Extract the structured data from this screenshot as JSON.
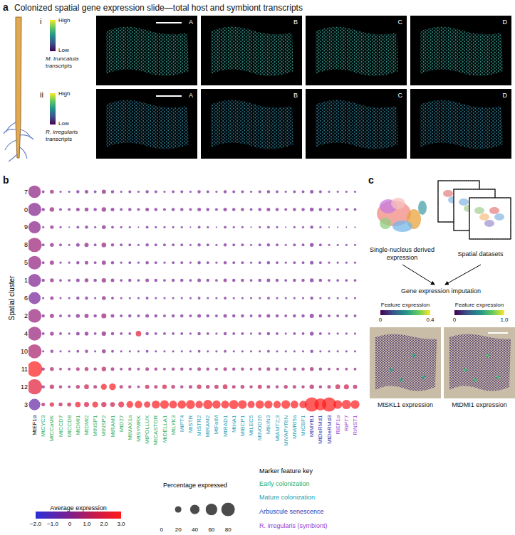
{
  "panel_a": {
    "label": "a",
    "title": "Colonized spatial gene expression slide—total host and symbiont transcripts",
    "rows": [
      {
        "label": "i",
        "high": "High",
        "low": "Low",
        "organism": "M. truncatula",
        "caption": "transcripts",
        "sections": [
          "A",
          "B",
          "C",
          "D"
        ]
      },
      {
        "label": "ii",
        "high": "High",
        "low": "Low",
        "organism": "R. irregularis",
        "caption": "transcripts",
        "sections": [
          "A",
          "B",
          "C",
          "D"
        ]
      }
    ]
  },
  "chart_data": {
    "type": "dot",
    "label": "b",
    "y_label": "Spatial cluster",
    "categories": [
      "MtEF1α",
      "MtCYC3",
      "MtCCaMK",
      "MtCCD7",
      "MtCCD8",
      "MtDMI1",
      "MtDMI2",
      "MtNSP1",
      "MtNSP2",
      "MtRAM1",
      "MtD27",
      "MtMAX1a",
      "MtSYMRK",
      "MtPOLLUX",
      "MtCASTOR",
      "MtDELLA1",
      "MtLYK3",
      "MtPT4",
      "MtSTR",
      "MtSTR2",
      "MtRAM2",
      "MtFatM",
      "MtRAD1",
      "MtHA1",
      "MtBCP1",
      "MtLEC5",
      "MtNOD26",
      "MtKIN3",
      "MtAMT2;3",
      "MtVAPYRIN",
      "MtWRI5a",
      "MtCBF1",
      "MtMYB1",
      "MtDeRMd1",
      "MtDeRMd3",
      "RiEF1α",
      "RiPT7",
      "RiNST1"
    ],
    "category_groups": [
      null,
      0,
      0,
      0,
      0,
      0,
      0,
      0,
      0,
      0,
      0,
      0,
      0,
      0,
      0,
      0,
      0,
      1,
      1,
      1,
      1,
      1,
      1,
      1,
      1,
      1,
      1,
      1,
      1,
      1,
      1,
      1,
      2,
      2,
      2,
      3,
      3,
      3
    ],
    "groups": [
      {
        "name": "Early colonization",
        "color": "#2fae5e"
      },
      {
        "name": "Mature colonization",
        "color": "#1fa0b4"
      },
      {
        "name": "Arbuscule senescence",
        "color": "#2f35b0"
      },
      {
        "name": "R. irregularis (symbiont)",
        "color": "#9a3fd2"
      }
    ],
    "rows": [
      "7",
      "0",
      "9",
      "8",
      "5",
      "1",
      "6",
      "2",
      "4",
      "10",
      "11",
      "12",
      "3"
    ],
    "average_expression": [
      [
        0.3,
        -0.2,
        0.4,
        -0.3,
        -0.4,
        -0.2,
        0.1,
        -0.3,
        0.2,
        -0.1,
        -0.3,
        -0.2,
        -0.4,
        -0.1,
        -0.3,
        -0.2,
        -0.3,
        -0.3,
        -0.4,
        -0.2,
        -0.3,
        -0.4,
        -0.1,
        -0.3,
        -0.2,
        -0.4,
        -0.3,
        -0.2,
        -0.3,
        -0.4,
        -0.3,
        -0.2,
        -0.3,
        -0.4,
        -0.3,
        -0.4,
        -0.3,
        -0.4
      ],
      [
        0.1,
        -0.1,
        0.6,
        -0.2,
        -0.3,
        0.0,
        0.2,
        -0.2,
        0.3,
        0.0,
        -0.2,
        -0.1,
        -0.3,
        0.0,
        -0.2,
        -0.1,
        -0.2,
        -0.2,
        -0.3,
        -0.1,
        -0.2,
        -0.3,
        0.0,
        -0.2,
        -0.1,
        -0.3,
        -0.2,
        -0.1,
        -0.2,
        -0.3,
        -0.2,
        -0.1,
        -0.2,
        -0.3,
        -0.2,
        -0.3,
        -0.2,
        -0.3
      ],
      [
        0.2,
        -0.3,
        0.2,
        -0.4,
        -0.4,
        -0.3,
        0.0,
        -0.3,
        0.1,
        -0.2,
        -0.4,
        -0.3,
        -0.4,
        -0.2,
        -0.4,
        -0.3,
        -0.4,
        -0.4,
        -0.4,
        -0.3,
        -0.4,
        -0.4,
        -0.2,
        -0.4,
        -0.3,
        -0.4,
        -0.4,
        -0.3,
        -0.4,
        -0.4,
        -0.4,
        -0.3,
        -0.4,
        -0.4,
        -0.4,
        -0.4,
        -0.4,
        -0.4
      ],
      [
        0.6,
        -0.2,
        0.3,
        -0.3,
        -0.3,
        -0.1,
        0.3,
        -0.2,
        0.5,
        0.0,
        -0.3,
        -0.2,
        -0.3,
        -0.1,
        -0.2,
        -0.2,
        -0.3,
        -0.3,
        -0.3,
        -0.2,
        -0.3,
        -0.3,
        -0.1,
        -0.3,
        -0.2,
        -0.3,
        -0.3,
        -0.2,
        -0.3,
        -0.3,
        -0.3,
        -0.2,
        -0.2,
        -0.3,
        -0.2,
        -0.3,
        -0.3,
        -0.3
      ],
      [
        0.4,
        -0.2,
        0.4,
        -0.3,
        -0.3,
        -0.2,
        0.1,
        -0.2,
        0.3,
        -0.1,
        -0.3,
        -0.2,
        -0.3,
        -0.1,
        -0.3,
        -0.2,
        -0.3,
        -0.3,
        -0.3,
        -0.2,
        -0.3,
        -0.3,
        -0.1,
        -0.3,
        -0.2,
        -0.3,
        -0.3,
        -0.2,
        -0.3,
        -0.3,
        -0.3,
        -0.2,
        -0.3,
        -0.3,
        -0.3,
        -0.3,
        -0.3,
        -0.3
      ],
      [
        0.0,
        -0.1,
        0.3,
        -0.2,
        -0.3,
        -0.1,
        0.2,
        -0.2,
        0.4,
        0.0,
        -0.2,
        -0.1,
        -0.3,
        0.0,
        -0.2,
        -0.1,
        -0.2,
        -0.2,
        -0.3,
        -0.1,
        -0.2,
        -0.3,
        0.0,
        -0.2,
        -0.1,
        -0.3,
        -0.2,
        -0.1,
        -0.2,
        -0.3,
        -0.2,
        -0.1,
        -0.2,
        -0.3,
        -0.2,
        -0.3,
        -0.2,
        -0.3
      ],
      [
        -0.2,
        -0.3,
        0.2,
        -0.3,
        -0.4,
        -0.2,
        0.0,
        -0.3,
        0.2,
        -0.1,
        -0.3,
        -0.2,
        -0.4,
        -0.2,
        -0.3,
        -0.3,
        -0.3,
        -0.3,
        -0.4,
        -0.3,
        -0.3,
        -0.4,
        -0.2,
        -0.3,
        -0.3,
        -0.4,
        -0.3,
        -0.3,
        -0.3,
        -0.4,
        -0.3,
        -0.3,
        -0.3,
        -0.4,
        -0.3,
        -0.4,
        -0.3,
        -0.4
      ],
      [
        0.5,
        -0.1,
        0.5,
        -0.2,
        -0.2,
        0.0,
        0.3,
        -0.1,
        0.6,
        0.1,
        -0.2,
        -0.1,
        -0.2,
        0.0,
        -0.1,
        -0.1,
        -0.2,
        -0.2,
        -0.2,
        -0.1,
        -0.2,
        -0.2,
        0.0,
        -0.2,
        -0.1,
        -0.2,
        -0.2,
        -0.1,
        -0.2,
        -0.2,
        -0.2,
        -0.1,
        -0.1,
        -0.2,
        -0.2,
        -0.2,
        -0.2,
        -0.2
      ],
      [
        0.5,
        -0.2,
        0.3,
        -0.2,
        -0.3,
        -0.1,
        0.2,
        -0.2,
        0.4,
        0.0,
        -0.2,
        -0.2,
        2.0,
        -0.1,
        -0.2,
        -0.2,
        -0.2,
        -0.2,
        -0.3,
        -0.2,
        -0.2,
        -0.3,
        -0.1,
        -0.2,
        -0.2,
        -0.3,
        -0.2,
        -0.2,
        -0.2,
        -0.3,
        -0.2,
        -0.2,
        -0.2,
        -0.3,
        -0.2,
        -0.3,
        -0.2,
        -0.3
      ],
      [
        0.8,
        -0.3,
        0.1,
        -0.3,
        -0.4,
        -0.2,
        0.1,
        -0.3,
        0.2,
        -0.2,
        -0.3,
        -0.3,
        -0.4,
        -0.2,
        -0.3,
        -0.3,
        -0.3,
        -0.3,
        -0.4,
        -0.3,
        -0.3,
        -0.4,
        -0.2,
        -0.3,
        -0.3,
        -0.4,
        -0.3,
        -0.3,
        -0.3,
        -0.4,
        -0.3,
        -0.3,
        -0.3,
        -0.4,
        -0.3,
        -0.4,
        -0.3,
        -0.4
      ],
      [
        3.0,
        0.6,
        0.9,
        0.4,
        0.3,
        0.8,
        1.0,
        0.5,
        1.2,
        0.7,
        0.4,
        0.5,
        0.3,
        0.6,
        0.4,
        0.5,
        0.4,
        0.4,
        0.3,
        0.5,
        0.4,
        0.3,
        0.6,
        0.4,
        0.5,
        0.3,
        0.4,
        0.5,
        0.4,
        0.3,
        0.4,
        0.5,
        0.6,
        0.3,
        0.4,
        0.3,
        0.4,
        0.3
      ],
      [
        2.2,
        0.5,
        1.2,
        0.6,
        0.4,
        1.0,
        1.5,
        0.8,
        2.6,
        2.8,
        1.0,
        0.8,
        0.5,
        1.4,
        0.9,
        1.8,
        1.2,
        0.6,
        0.8,
        1.5,
        1.0,
        1.2,
        1.6,
        0.9,
        1.1,
        0.7,
        1.3,
        0.9,
        0.6,
        1.0,
        0.8,
        0.7,
        1.0,
        0.5,
        0.8,
        1.4,
        1.6,
        1.1
      ],
      [
        -0.6,
        1.0,
        2.0,
        1.2,
        1.4,
        2.5,
        1.8,
        2.6,
        1.6,
        1.5,
        2.2,
        2.8,
        2.9,
        2.6,
        2.9,
        3.0,
        2.8,
        2.9,
        3.0,
        2.7,
        3.0,
        2.9,
        2.8,
        3.0,
        2.9,
        2.7,
        3.0,
        2.9,
        2.8,
        3.0,
        2.9,
        2.8,
        3.0,
        3.0,
        3.0,
        2.9,
        3.0,
        3.0
      ]
    ],
    "percentage_expressed": [
      [
        62,
        3,
        6,
        2,
        2,
        4,
        5,
        3,
        7,
        4,
        2,
        3,
        2,
        4,
        3,
        2,
        3,
        3,
        2,
        4,
        3,
        2,
        4,
        3,
        3,
        2,
        3,
        4,
        3,
        2,
        3,
        3,
        5,
        3,
        2,
        2,
        2,
        2
      ],
      [
        70,
        4,
        8,
        3,
        3,
        5,
        6,
        4,
        8,
        5,
        3,
        4,
        3,
        5,
        4,
        3,
        4,
        4,
        3,
        5,
        4,
        3,
        5,
        4,
        4,
        3,
        4,
        5,
        4,
        3,
        4,
        4,
        6,
        4,
        3,
        3,
        3,
        3
      ],
      [
        60,
        2,
        5,
        2,
        1,
        3,
        4,
        2,
        6,
        3,
        2,
        2,
        1,
        3,
        2,
        2,
        2,
        2,
        1,
        3,
        2,
        1,
        3,
        2,
        2,
        1,
        2,
        3,
        2,
        1,
        2,
        2,
        4,
        2,
        1,
        1,
        1,
        1
      ],
      [
        82,
        3,
        6,
        3,
        2,
        5,
        7,
        3,
        9,
        4,
        3,
        3,
        2,
        4,
        3,
        3,
        3,
        3,
        2,
        4,
        3,
        2,
        4,
        3,
        3,
        2,
        3,
        4,
        3,
        2,
        3,
        3,
        6,
        3,
        2,
        2,
        2,
        2
      ],
      [
        72,
        3,
        7,
        2,
        2,
        4,
        5,
        3,
        7,
        4,
        2,
        3,
        2,
        4,
        3,
        2,
        3,
        3,
        2,
        4,
        3,
        2,
        4,
        3,
        3,
        2,
        3,
        4,
        3,
        2,
        3,
        3,
        5,
        3,
        2,
        2,
        2,
        2
      ],
      [
        66,
        4,
        6,
        3,
        3,
        5,
        6,
        4,
        8,
        5,
        3,
        4,
        3,
        5,
        4,
        3,
        4,
        4,
        3,
        5,
        4,
        3,
        5,
        4,
        4,
        3,
        4,
        5,
        4,
        3,
        4,
        4,
        6,
        4,
        3,
        3,
        3,
        3
      ],
      [
        58,
        2,
        5,
        2,
        2,
        4,
        4,
        2,
        6,
        3,
        2,
        2,
        2,
        3,
        2,
        2,
        2,
        2,
        2,
        3,
        2,
        2,
        3,
        2,
        2,
        2,
        2,
        3,
        2,
        2,
        2,
        2,
        4,
        2,
        2,
        2,
        2,
        2
      ],
      [
        74,
        4,
        7,
        3,
        3,
        6,
        7,
        4,
        10,
        5,
        3,
        4,
        3,
        5,
        4,
        3,
        4,
        4,
        3,
        5,
        4,
        3,
        5,
        4,
        4,
        3,
        4,
        5,
        4,
        3,
        4,
        4,
        7,
        4,
        3,
        3,
        3,
        3
      ],
      [
        76,
        3,
        6,
        3,
        2,
        5,
        6,
        3,
        8,
        4,
        3,
        3,
        12,
        4,
        3,
        3,
        3,
        3,
        2,
        4,
        3,
        2,
        4,
        3,
        3,
        2,
        3,
        4,
        3,
        2,
        3,
        3,
        6,
        3,
        2,
        2,
        2,
        2
      ],
      [
        78,
        2,
        4,
        2,
        2,
        3,
        4,
        2,
        6,
        3,
        2,
        2,
        2,
        3,
        2,
        2,
        2,
        2,
        2,
        3,
        2,
        2,
        3,
        2,
        2,
        2,
        2,
        3,
        2,
        2,
        2,
        2,
        4,
        2,
        2,
        2,
        2,
        2
      ],
      [
        95,
        4,
        6,
        3,
        3,
        5,
        6,
        4,
        8,
        5,
        3,
        4,
        3,
        5,
        4,
        3,
        4,
        4,
        3,
        5,
        4,
        3,
        5,
        4,
        4,
        3,
        4,
        5,
        4,
        3,
        4,
        4,
        6,
        4,
        3,
        3,
        3,
        3
      ],
      [
        90,
        4,
        8,
        4,
        3,
        6,
        9,
        5,
        14,
        18,
        5,
        4,
        3,
        7,
        5,
        8,
        6,
        4,
        5,
        8,
        6,
        7,
        9,
        5,
        6,
        4,
        7,
        5,
        4,
        6,
        5,
        4,
        8,
        4,
        5,
        9,
        10,
        7
      ],
      [
        52,
        5,
        8,
        6,
        7,
        12,
        10,
        14,
        11,
        9,
        13,
        18,
        22,
        16,
        26,
        30,
        24,
        28,
        32,
        22,
        34,
        27,
        25,
        33,
        30,
        20,
        28,
        26,
        22,
        30,
        24,
        22,
        80,
        58,
        80,
        30,
        34,
        30
      ]
    ],
    "colorbar": {
      "title": "Average expression",
      "range": [
        -2,
        3
      ],
      "ticks": [
        {
          "value": -2,
          "label": "−2.0"
        },
        {
          "value": -1,
          "label": "−1.0"
        },
        0,
        {
          "value": 1,
          "label": "1.0"
        },
        {
          "value": 2,
          "label": "2.0"
        },
        {
          "value": 3,
          "label": "3.0"
        }
      ]
    },
    "size_legend": {
      "title": "Percentage expressed",
      "values": [
        0,
        20,
        40,
        60,
        80
      ]
    },
    "key_title": "Marker feature key"
  },
  "panel_c": {
    "label": "c",
    "umap_caption": "Single-nucleus derived expression",
    "spatial_caption": "Spatial datasets",
    "step": "Gene expression imputation",
    "maps": [
      {
        "caption": "MtSKL1 expression",
        "colorbar_title": "Feature expression",
        "range": [
          0,
          0.4
        ],
        "ticks": [
          0,
          0.4
        ]
      },
      {
        "caption": "MtDMI1 expression",
        "colorbar_title": "Feature expression",
        "range": [
          0,
          1
        ],
        "ticks": [
          0,
          {
            "value": 1,
            "label": "1.0"
          }
        ]
      }
    ]
  }
}
